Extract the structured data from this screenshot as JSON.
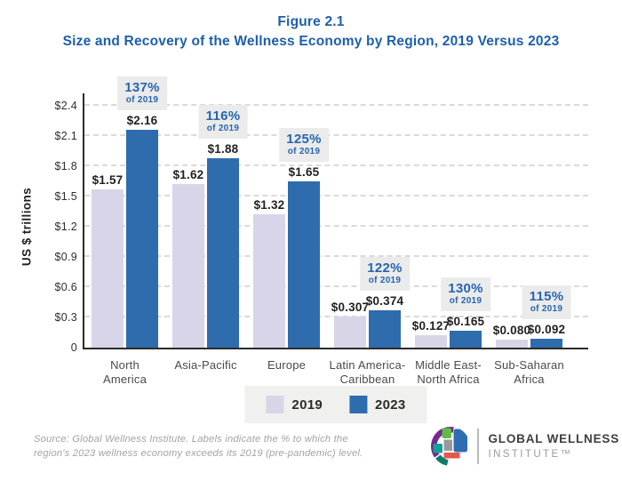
{
  "header": {
    "figure_label": "Figure 2.1",
    "title": "Size and Recovery of the Wellness Economy by Region, 2019 Versus 2023"
  },
  "chart_data": {
    "type": "bar",
    "title": "Size and Recovery of the Wellness Economy by Region, 2019 Versus 2023",
    "xlabel": "",
    "ylabel": "US $ trillions",
    "ylim": [
      0,
      2.4
    ],
    "grid": "horizontal-dashed",
    "legend_position": "bottom-center",
    "yticks": [
      {
        "label": "$2.4",
        "value": 2.4
      },
      {
        "label": "$2.1",
        "value": 2.1
      },
      {
        "label": "$1.8",
        "value": 1.8
      },
      {
        "label": "$1.5",
        "value": 1.5
      },
      {
        "label": "$1.2",
        "value": 1.2
      },
      {
        "label": "$0.9",
        "value": 0.9
      },
      {
        "label": "$0.6",
        "value": 0.6
      },
      {
        "label": "$0.3",
        "value": 0.3
      },
      {
        "label": "0",
        "value": 0
      }
    ],
    "categories": [
      {
        "lines": [
          "North",
          "America"
        ]
      },
      {
        "lines": [
          "Asia-Pacific"
        ]
      },
      {
        "lines": [
          "Europe"
        ]
      },
      {
        "lines": [
          "Latin America-",
          "Caribbean"
        ]
      },
      {
        "lines": [
          "Middle East-",
          "North Africa"
        ]
      },
      {
        "lines": [
          "Sub-Saharan",
          "Africa"
        ]
      }
    ],
    "series": [
      {
        "name": "2019",
        "color": "#d8d5e9",
        "values": [
          1.57,
          1.62,
          1.32,
          0.307,
          0.127,
          0.08
        ],
        "value_labels": [
          "$1.57",
          "$1.62",
          "$1.32",
          "$0.307",
          "$0.127",
          "$0.080"
        ]
      },
      {
        "name": "2023",
        "color": "#2e6cad",
        "values": [
          2.16,
          1.88,
          1.65,
          0.374,
          0.165,
          0.092
        ],
        "value_labels": [
          "$2.16",
          "$1.88",
          "$1.65",
          "$0.374",
          "$0.165",
          "$0.092"
        ]
      }
    ],
    "pct_annotations": [
      {
        "pct": "137%",
        "sub": "of 2019"
      },
      {
        "pct": "116%",
        "sub": "of 2019"
      },
      {
        "pct": "125%",
        "sub": "of 2019"
      },
      {
        "pct": "122%",
        "sub": "of 2019"
      },
      {
        "pct": "130%",
        "sub": "of 2019"
      },
      {
        "pct": "115%",
        "sub": "of 2019"
      }
    ]
  },
  "legend": {
    "items": [
      {
        "label": "2019",
        "color": "#d8d5e9"
      },
      {
        "label": "2023",
        "color": "#2e6cad"
      }
    ]
  },
  "footer": {
    "source_lines": [
      "Source: Global Wellness Institute. Labels indicate the % to which the",
      "region's 2023 wellness economy exceeds its 2019 (pre-pandemic) level."
    ],
    "logo": {
      "line1": "GLOBAL WELLNESS",
      "line2": "INSTITUTE™"
    }
  },
  "colors": {
    "title_blue": "#1d5fad",
    "pct_blue": "#2565b0",
    "bar_2019": "#d8d5e9",
    "bar_2023": "#2e6cad",
    "annotation_bg": "#ebebeb",
    "legend_bg": "#f0f0ee",
    "text_dark": "#231f20",
    "axis": "#2b2b2b",
    "gridline": "#dadada",
    "category_text": "#4a4a4a",
    "source_gray": "#a3a3a3"
  }
}
